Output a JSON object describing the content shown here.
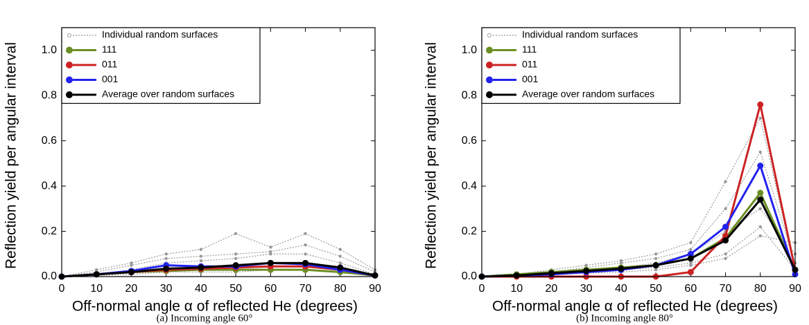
{
  "chart_data": [
    {
      "type": "line",
      "caption": "(a) Incoming angle 60°",
      "xlabel": "Off-normal angle α of reflected He (degrees)",
      "ylabel": "Reflection yield per angular interval",
      "x": [
        0,
        10,
        20,
        30,
        40,
        50,
        60,
        70,
        80,
        90
      ],
      "xlim": [
        0,
        90
      ],
      "xticks": [
        0,
        10,
        20,
        30,
        40,
        50,
        60,
        70,
        80,
        90
      ],
      "ylim": [
        0,
        1.1
      ],
      "yticks": [
        {
          "value": 0,
          "label": "0.0"
        },
        0.2,
        0.4,
        0.6,
        0.8,
        {
          "value": 1,
          "label": "1.0"
        }
      ],
      "grid": false,
      "legend": "upper left",
      "series": [
        {
          "name": "Individual random surfaces",
          "color": "#999999",
          "style": "dotted",
          "lines": [
            [
              0,
              0.03,
              0.06,
              0.1,
              0.12,
              0.19,
              0.13,
              0.19,
              0.12,
              0.03
            ],
            [
              0,
              0.02,
              0.05,
              0.08,
              0.09,
              0.1,
              0.11,
              0.14,
              0.09,
              0.02
            ],
            [
              0,
              0.01,
              0.03,
              0.06,
              0.07,
              0.08,
              0.1,
              0.1,
              0.06,
              0.01
            ],
            [
              0,
              0.01,
              0.02,
              0.03,
              0.03,
              0.04,
              0.06,
              0.05,
              0.03,
              0.01
            ],
            [
              0,
              0.005,
              0.01,
              0.02,
              0.02,
              0.02,
              0.03,
              0.03,
              0.02,
              0.005
            ]
          ]
        },
        {
          "name": "111",
          "color": "#6b8e23",
          "values": [
            0,
            0.01,
            0.02,
            0.025,
            0.03,
            0.03,
            0.03,
            0.03,
            0.02,
            0.005
          ]
        },
        {
          "name": "011",
          "color": "#cc2222",
          "values": [
            0,
            0.01,
            0.02,
            0.03,
            0.035,
            0.04,
            0.045,
            0.045,
            0.03,
            0.005
          ]
        },
        {
          "name": "001",
          "color": "#2222ee",
          "values": [
            0,
            0.01,
            0.025,
            0.05,
            0.045,
            0.045,
            0.06,
            0.055,
            0.03,
            0.005
          ]
        },
        {
          "name": "Average over random surfaces",
          "color": "#000000",
          "values": [
            0,
            0.01,
            0.02,
            0.035,
            0.04,
            0.05,
            0.06,
            0.06,
            0.04,
            0.005
          ]
        }
      ]
    },
    {
      "type": "line",
      "caption": "(b) Incoming angle 80°",
      "xlabel": "Off-normal angle α of reflected He (degrees)",
      "ylabel": "Reflection yield per angular interval",
      "x": [
        0,
        10,
        20,
        30,
        40,
        50,
        60,
        70,
        80,
        90
      ],
      "xlim": [
        0,
        90
      ],
      "xticks": [
        0,
        10,
        20,
        30,
        40,
        50,
        60,
        70,
        80,
        90
      ],
      "ylim": [
        0,
        1.1
      ],
      "yticks": [
        {
          "value": 0,
          "label": "0.0"
        },
        0.2,
        0.4,
        0.6,
        0.8,
        {
          "value": 1,
          "label": "1.0"
        }
      ],
      "grid": false,
      "legend": "upper left",
      "series": [
        {
          "name": "Individual random surfaces",
          "color": "#999999",
          "style": "dotted",
          "lines": [
            [
              0,
              0.01,
              0.03,
              0.05,
              0.07,
              0.1,
              0.15,
              0.42,
              0.7,
              0.03
            ],
            [
              0,
              0.01,
              0.02,
              0.04,
              0.06,
              0.08,
              0.12,
              0.3,
              0.55,
              0.06
            ],
            [
              0,
              0.005,
              0.02,
              0.03,
              0.04,
              0.06,
              0.1,
              0.2,
              0.3,
              0.1
            ],
            [
              0,
              0.005,
              0.01,
              0.02,
              0.03,
              0.04,
              0.06,
              0.1,
              0.22,
              0.03
            ],
            [
              0,
              0.002,
              0.01,
              0.015,
              0.02,
              0.03,
              0.05,
              0.08,
              0.18,
              0.15
            ]
          ]
        },
        {
          "name": "111",
          "color": "#6b8e23",
          "values": [
            0,
            0.01,
            0.02,
            0.03,
            0.04,
            0.05,
            0.08,
            0.17,
            0.37,
            0.03
          ]
        },
        {
          "name": "011",
          "color": "#cc2222",
          "values": [
            0,
            0,
            0,
            0,
            0,
            0,
            0.02,
            0.18,
            0.76,
            0.03
          ]
        },
        {
          "name": "001",
          "color": "#2222ee",
          "values": [
            0,
            0.005,
            0.01,
            0.02,
            0.03,
            0.05,
            0.1,
            0.22,
            0.49,
            0.01
          ]
        },
        {
          "name": "Average over random surfaces",
          "color": "#000000",
          "values": [
            0,
            0.005,
            0.015,
            0.025,
            0.035,
            0.05,
            0.08,
            0.16,
            0.34,
            0.03
          ]
        }
      ]
    }
  ]
}
